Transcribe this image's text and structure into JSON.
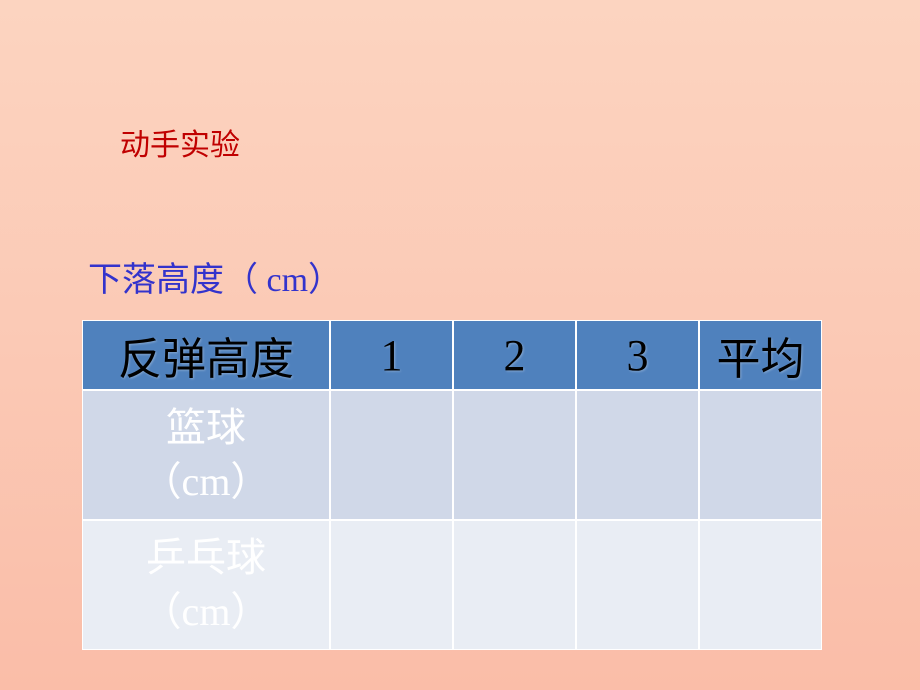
{
  "subtitle": "动手实验",
  "dropHeightLabel": "下落高度（   cm）",
  "table": {
    "header": {
      "label": "反弹高度",
      "col1": "1",
      "col2": "2",
      "col3": "3",
      "avg": "平均"
    },
    "rows": [
      {
        "label": "篮球\n（cm）",
        "v1": "",
        "v2": "",
        "v3": "",
        "avg": ""
      },
      {
        "label": "乒乓球\n（cm）",
        "v1": "",
        "v2": "",
        "v3": "",
        "avg": ""
      }
    ]
  },
  "colors": {
    "headerBg": "#4f81bd",
    "rowBg1": "#d0d8e8",
    "rowBg2": "#e9edf4",
    "subtitleColor": "#c00000",
    "dropColor": "#3333cc"
  }
}
